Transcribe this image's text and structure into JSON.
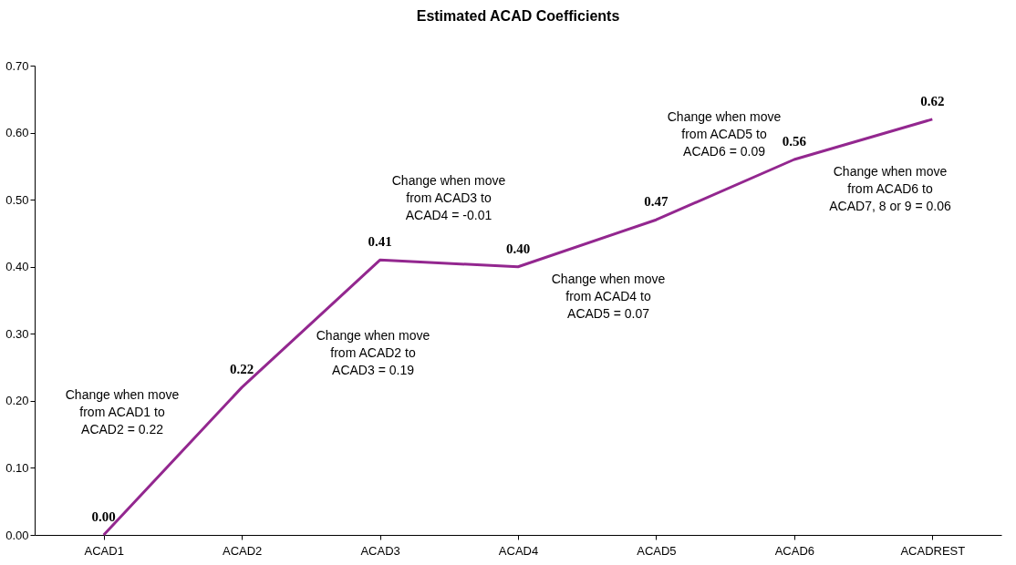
{
  "chart_data": {
    "type": "line",
    "title": "Estimated ACAD Coefficients",
    "categories": [
      "ACAD1",
      "ACAD2",
      "ACAD3",
      "ACAD4",
      "ACAD5",
      "ACAD6",
      "ACADREST"
    ],
    "series": [
      {
        "color": "#93278f",
        "values": [
          0.0,
          0.22,
          0.41,
          0.4,
          0.47,
          0.56,
          0.62
        ]
      }
    ],
    "value_labels": [
      "0.00",
      "0.22",
      "0.41",
      "0.40",
      "0.47",
      "0.56",
      "0.62"
    ],
    "ylim": [
      0,
      0.7
    ],
    "yticks": [
      {
        "value": 0,
        "label": "0.00"
      },
      {
        "value": 0.1,
        "label": "0.10"
      },
      {
        "value": 0.2,
        "label": "0.20"
      },
      {
        "value": 0.3,
        "label": "0.30"
      },
      {
        "value": 0.4,
        "label": "0.40"
      },
      {
        "value": 0.5,
        "label": "0.50"
      },
      {
        "value": 0.6,
        "label": "0.60"
      },
      {
        "value": 0.7,
        "label": "0.70"
      }
    ],
    "grid": false,
    "marker": "none",
    "annotations": [
      "Change when move\nfrom ACAD1 to\nACAD2 = 0.22",
      "Change when move\nfrom ACAD2 to\nACAD3 = 0.19",
      "Change when move\nfrom ACAD3 to\nACAD4 = -0.01",
      "Change when move\nfrom ACAD4 to\nACAD5 = 0.07",
      "Change when move\nfrom ACAD5 to\nACAD6 = 0.09",
      "Change when move\nfrom ACAD6 to\nACAD7, 8 or 9 = 0.06"
    ]
  }
}
